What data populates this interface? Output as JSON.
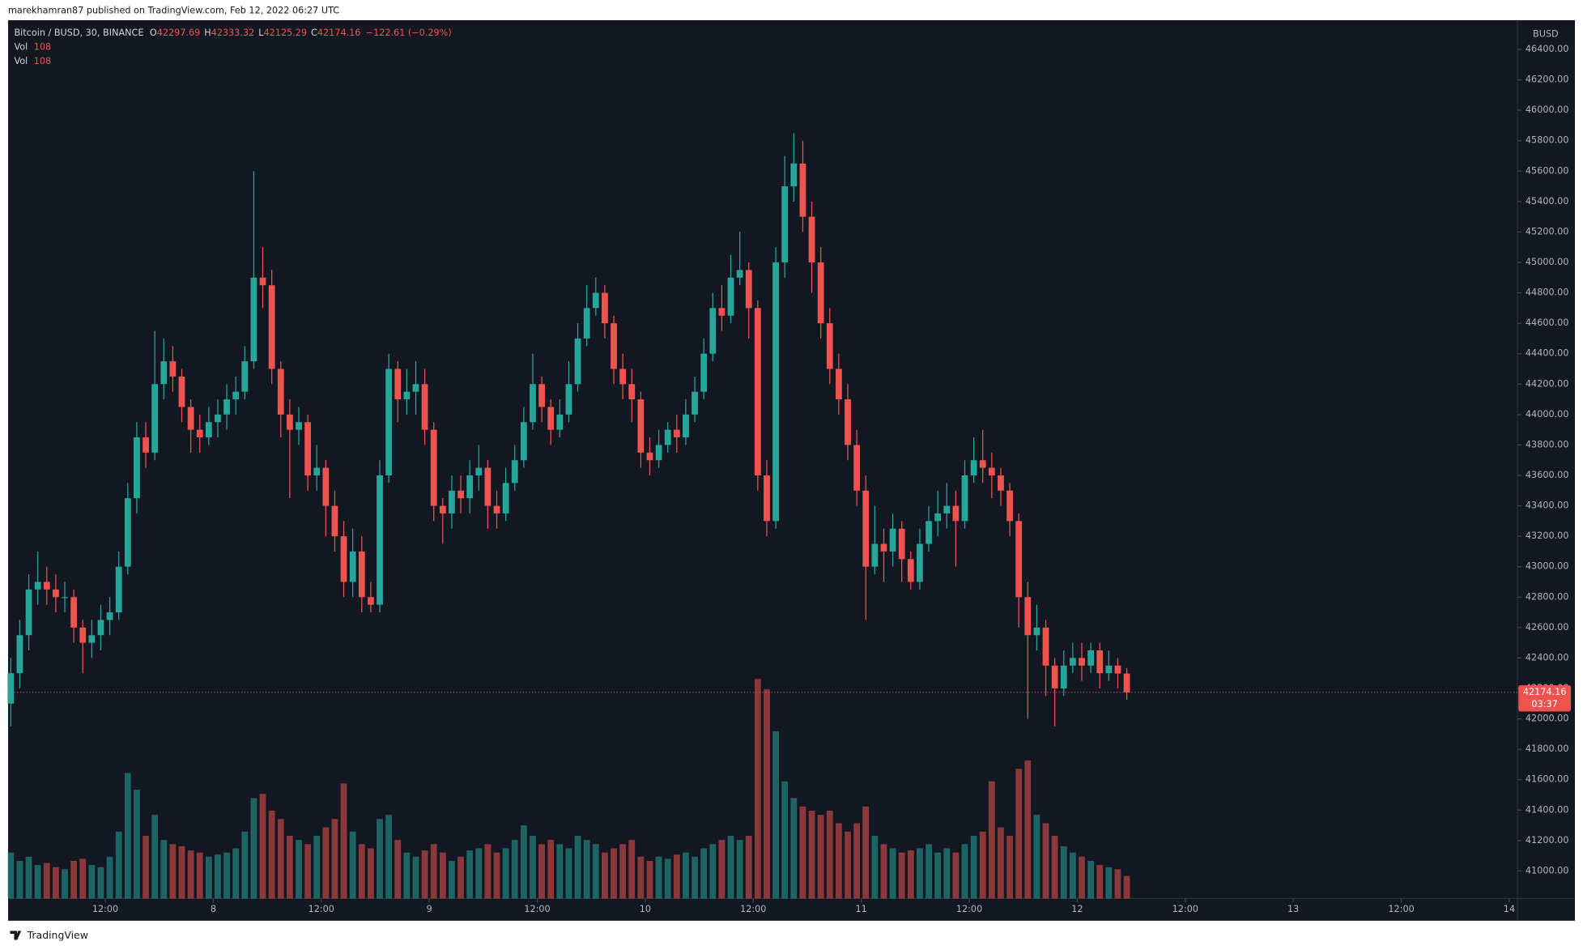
{
  "header": "marekhamran87 published on TradingView.com, Feb 12, 2022 06:27 UTC",
  "footer": "TradingView",
  "chart_data": {
    "type": "candlestick",
    "title": "Bitcoin / BUSD, 30, BINANCE",
    "ohlc_labels": [
      "O",
      "H",
      "L",
      "C"
    ],
    "change_label": "−122.61 (−0.29%)",
    "volume_indicators": [
      "Vol",
      "Vol"
    ],
    "y_axis_label": "BUSD",
    "countdown": "03:37",
    "up_color": "#26a69a",
    "down_color": "#ef5350",
    "grid": false,
    "x": [
      1.5,
      2.5,
      3.5,
      4.5,
      5.5,
      6.5,
      7.5,
      8.5,
      9.5,
      10.5,
      11.5,
      12.5,
      13.5,
      14.5,
      15.5,
      16.5,
      17.5,
      18.5,
      19.5,
      20.5,
      21.5,
      22.5,
      23.5,
      24.5,
      25.5,
      26.5,
      27.5,
      28.5,
      29.5,
      30.5,
      31.5,
      32.5,
      33.5,
      34.5,
      35.5,
      36.5,
      37.5,
      38.5,
      39.5,
      40.5,
      41.5,
      42.5,
      43.5,
      44.5,
      45.5,
      46.5,
      47.5,
      48.5,
      49.5,
      50.5,
      51.5,
      52.5,
      53.5,
      54.5,
      55.5,
      56.5,
      57.5,
      58.5,
      59.5,
      60.5,
      61.5,
      62.5,
      63.5,
      64.5,
      65.5,
      66.5,
      67.5,
      68.5,
      69.5,
      70.5,
      71.5,
      72.5,
      73.5,
      74.5,
      75.5,
      76.5,
      77.5,
      78.5,
      79.5,
      80.5,
      81.5,
      82.5,
      83.5,
      84.5,
      85.5,
      86.5,
      87.5,
      88.5,
      89.5,
      90.5,
      91.5,
      92.5,
      93.5,
      94.5,
      95.5,
      96.5,
      97.5,
      98.5,
      99.5,
      100.5,
      101.5,
      102.5,
      103.5,
      104.5,
      105.5,
      106.5,
      107.5,
      108.5,
      109.5,
      110.5,
      111.5,
      112.5,
      113.5,
      114.5,
      115.5,
      116.5,
      117.5,
      118.5,
      119.5,
      120.5,
      121.5,
      122.5,
      123.5,
      124.5,
      125.5
    ],
    "open": [
      42100,
      42300,
      42550,
      42850,
      42900,
      42850,
      42800,
      42800,
      42600,
      42500,
      42550,
      42650,
      42700,
      43000,
      43450,
      43850,
      43750,
      44200,
      44350,
      44250,
      44050,
      43900,
      43850,
      43950,
      44000,
      44100,
      44150,
      44350,
      44900,
      44850,
      44300,
      44000,
      43900,
      43950,
      43600,
      43650,
      43400,
      43200,
      42900,
      43100,
      42800,
      42750,
      43600,
      44300,
      44100,
      44150,
      44200,
      43900,
      43400,
      43350,
      43500,
      43450,
      43600,
      43650,
      43400,
      43350,
      43550,
      43700,
      43950,
      44200,
      44050,
      43900,
      44000,
      44200,
      44500,
      44700,
      44800,
      44600,
      44300,
      44200,
      44100,
      43750,
      43700,
      43800,
      43900,
      43850,
      44000,
      44150,
      44400,
      44700,
      44650,
      44900,
      44950,
      44700,
      43600,
      43300,
      45000,
      45500,
      45650,
      45300,
      45000,
      44600,
      44300,
      44100,
      43800,
      43500,
      43000,
      43150,
      43100,
      43250,
      43050,
      42900,
      43150,
      43300,
      43350,
      43400,
      43300,
      43600,
      43700,
      43650,
      43600,
      43500,
      43300,
      42800,
      42550,
      42600,
      42350,
      42200,
      42350,
      42400,
      42350,
      42450,
      42300,
      42350,
      42297.69
    ],
    "high": [
      42400,
      42650,
      42950,
      43100,
      43000,
      42950,
      42900,
      42850,
      42650,
      42650,
      42750,
      42800,
      43100,
      43550,
      43950,
      43950,
      44550,
      44500,
      44450,
      44300,
      44100,
      44000,
      44050,
      44100,
      44200,
      44250,
      44450,
      45600,
      45100,
      44950,
      44350,
      44100,
      44050,
      44000,
      43800,
      43700,
      43500,
      43300,
      43250,
      43200,
      42900,
      43700,
      44400,
      44350,
      44300,
      44350,
      44300,
      43950,
      43450,
      43600,
      43600,
      43700,
      43800,
      43700,
      43500,
      43650,
      43800,
      44050,
      44400,
      44250,
      44100,
      44100,
      44350,
      44600,
      44850,
      44900,
      44850,
      44650,
      44400,
      44300,
      44150,
      43850,
      43900,
      43950,
      44000,
      44100,
      44250,
      44500,
      44800,
      44850,
      45050,
      45200,
      45000,
      44750,
      43700,
      45100,
      45700,
      45850,
      45800,
      45400,
      45100,
      44700,
      44400,
      44200,
      43900,
      43600,
      43400,
      43250,
      43350,
      43300,
      43100,
      43250,
      43400,
      43500,
      43550,
      43500,
      43700,
      43850,
      43900,
      43750,
      43650,
      43550,
      43350,
      42900,
      42750,
      42650,
      42400,
      42450,
      42500,
      42500,
      42500,
      42500,
      42450,
      42400,
      42333.32
    ],
    "low": [
      41950,
      42200,
      42450,
      42750,
      42750,
      42700,
      42700,
      42500,
      42300,
      42400,
      42450,
      42550,
      42650,
      42950,
      43350,
      43650,
      43700,
      44100,
      44150,
      43950,
      43750,
      43750,
      43800,
      43850,
      43900,
      44000,
      44100,
      44300,
      44700,
      44200,
      43850,
      43450,
      43800,
      43500,
      43500,
      43200,
      43100,
      42800,
      42800,
      42700,
      42700,
      42700,
      43550,
      43950,
      44000,
      44000,
      43800,
      43300,
      43150,
      43250,
      43350,
      43350,
      43500,
      43250,
      43250,
      43300,
      43500,
      43650,
      43900,
      43950,
      43800,
      43850,
      43950,
      44150,
      44450,
      44650,
      44500,
      44200,
      44100,
      43950,
      43650,
      43600,
      43650,
      43750,
      43750,
      43800,
      43950,
      44100,
      44350,
      44550,
      44600,
      44850,
      44500,
      43500,
      43200,
      43250,
      44900,
      45400,
      45200,
      44800,
      44500,
      44200,
      44000,
      43700,
      43400,
      42650,
      42950,
      42900,
      43000,
      42900,
      42850,
      42850,
      43100,
      43200,
      43250,
      43000,
      43250,
      43550,
      43550,
      43450,
      43400,
      43200,
      42600,
      42000,
      42450,
      42150,
      41950,
      42150,
      42300,
      42250,
      42300,
      42200,
      42250,
      42200,
      42125.29
    ],
    "close": [
      42300,
      42550,
      42850,
      42900,
      42850,
      42800,
      42800,
      42600,
      42500,
      42550,
      42650,
      42700,
      43000,
      43450,
      43850,
      43750,
      44200,
      44350,
      44250,
      44050,
      43900,
      43850,
      43950,
      44000,
      44100,
      44150,
      44350,
      44900,
      44850,
      44300,
      44000,
      43900,
      43950,
      43600,
      43650,
      43400,
      43200,
      42900,
      43100,
      42800,
      42750,
      43600,
      44300,
      44100,
      44150,
      44200,
      43900,
      43400,
      43350,
      43500,
      43450,
      43600,
      43650,
      43400,
      43350,
      43550,
      43700,
      43950,
      44200,
      44050,
      43900,
      44000,
      44200,
      44500,
      44700,
      44800,
      44600,
      44300,
      44200,
      44100,
      43750,
      43700,
      43800,
      43900,
      43850,
      44000,
      44150,
      44400,
      44700,
      44650,
      44900,
      44950,
      44700,
      43600,
      43300,
      45000,
      45500,
      45650,
      45300,
      45000,
      44600,
      44300,
      44100,
      43800,
      43500,
      43000,
      43150,
      43100,
      43250,
      43050,
      42900,
      43150,
      43300,
      43350,
      43400,
      43300,
      43600,
      43700,
      43650,
      43600,
      43500,
      43300,
      42800,
      42550,
      42600,
      42350,
      42200,
      42350,
      42400,
      42350,
      42450,
      42300,
      42350,
      42297.69,
      42174.16
    ],
    "volume": [
      220,
      180,
      200,
      160,
      170,
      150,
      140,
      180,
      190,
      160,
      150,
      200,
      320,
      600,
      520,
      300,
      400,
      280,
      260,
      250,
      230,
      220,
      200,
      210,
      220,
      240,
      320,
      480,
      500,
      420,
      380,
      300,
      280,
      260,
      300,
      340,
      380,
      550,
      320,
      260,
      240,
      380,
      400,
      280,
      220,
      200,
      230,
      260,
      220,
      180,
      200,
      230,
      240,
      260,
      220,
      240,
      280,
      350,
      300,
      260,
      280,
      260,
      240,
      300,
      280,
      260,
      220,
      240,
      260,
      280,
      200,
      180,
      200,
      190,
      210,
      220,
      200,
      240,
      260,
      280,
      300,
      280,
      300,
      1050,
      1000,
      800,
      560,
      480,
      440,
      420,
      400,
      420,
      360,
      320,
      360,
      440,
      300,
      260,
      240,
      220,
      230,
      240,
      260,
      220,
      240,
      220,
      260,
      300,
      320,
      560,
      340,
      300,
      620,
      660,
      400,
      360,
      300,
      250,
      220,
      200,
      180,
      160,
      150,
      140,
      108
    ],
    "volume_ylim": [
      0,
      4200
    ],
    "xlim": [
      1.2,
      168.9
    ],
    "xticks": [
      {
        "value": 12,
        "label": "12:00"
      },
      {
        "value": 24,
        "label": "8"
      },
      {
        "value": 36,
        "label": "12:00"
      },
      {
        "value": 48,
        "label": "9"
      },
      {
        "value": 60,
        "label": "12:00"
      },
      {
        "value": 72,
        "label": "10"
      },
      {
        "value": 84,
        "label": "12:00"
      },
      {
        "value": 96,
        "label": "11"
      },
      {
        "value": 108,
        "label": "12:00"
      },
      {
        "value": 120,
        "label": "12"
      },
      {
        "value": 132,
        "label": "12:00"
      },
      {
        "value": 144,
        "label": "13"
      },
      {
        "value": 156,
        "label": "12:00"
      },
      {
        "value": 168,
        "label": "14"
      }
    ],
    "ylim": [
      40819,
      46592
    ],
    "yticks": [
      {
        "value": 41000,
        "label": "41000.00"
      },
      {
        "value": 41200,
        "label": "41200.00"
      },
      {
        "value": 41400,
        "label": "41400.00"
      },
      {
        "value": 41600,
        "label": "41600.00"
      },
      {
        "value": 41800,
        "label": "41800.00"
      },
      {
        "value": 42000,
        "label": "42000.00"
      },
      {
        "value": 42200,
        "label": "42200.00"
      },
      {
        "value": 42400,
        "label": "42400.00"
      },
      {
        "value": 42600,
        "label": "42600.00"
      },
      {
        "value": 42800,
        "label": "42800.00"
      },
      {
        "value": 43000,
        "label": "43000.00"
      },
      {
        "value": 43200,
        "label": "43200.00"
      },
      {
        "value": 43400,
        "label": "43400.00"
      },
      {
        "value": 43600,
        "label": "43600.00"
      },
      {
        "value": 43800,
        "label": "43800.00"
      },
      {
        "value": 44000,
        "label": "44000.00"
      },
      {
        "value": 44200,
        "label": "44200.00"
      },
      {
        "value": 44400,
        "label": "44400.00"
      },
      {
        "value": 44600,
        "label": "44600.00"
      },
      {
        "value": 44800,
        "label": "44800.00"
      },
      {
        "value": 45000,
        "label": "45000.00"
      },
      {
        "value": 45200,
        "label": "45200.00"
      },
      {
        "value": 45400,
        "label": "45400.00"
      },
      {
        "value": 45600,
        "label": "45600.00"
      },
      {
        "value": 45800,
        "label": "45800.00"
      },
      {
        "value": 46000,
        "label": "46000.00"
      },
      {
        "value": 46200,
        "label": "46200.00"
      },
      {
        "value": 46400,
        "label": "46400.00"
      }
    ]
  }
}
